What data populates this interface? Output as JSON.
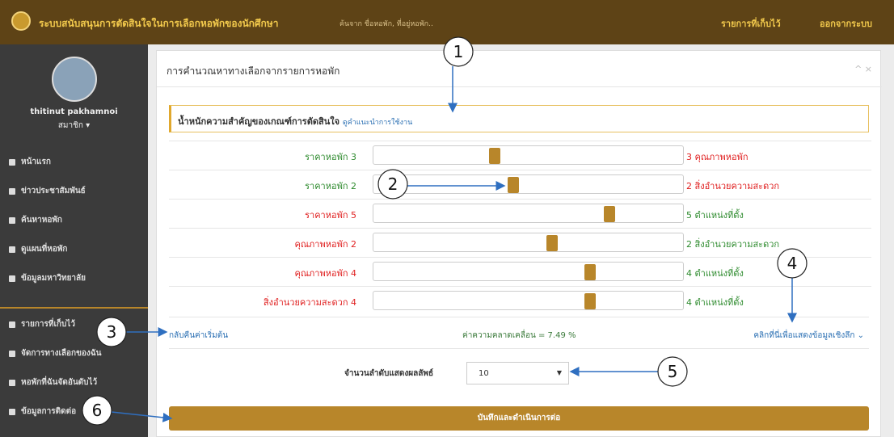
{
  "header": {
    "title": "ระบบสนับสนุนการตัดสินใจในการเลือกหอพักของนักศึกษา",
    "search_placeholder": "ค้นจาก ชื่อหอพัก, ที่อยู่หอพัก..",
    "saved": "รายการที่เก็บไว้",
    "logout": "ออกจากระบบ"
  },
  "sidebar": {
    "user_name": "thitinut pakhamnoi",
    "role": "สมาชิก",
    "menu": [
      "หน้าแรก",
      "ข่าวประชาสัมพันธ์",
      "ค้นหาหอพัก",
      "ดูแผนที่หอพัก",
      "ข้อมูลมหาวิทยาลัย",
      "รายการที่เก็บไว้",
      "จัดการทางเลือกของฉัน",
      "หอพักที่ฉันจัดอันดับไว้",
      "ข้อมูลการติดต่อ"
    ]
  },
  "panel": {
    "title": "การคำนวณหาทางเลือกจากรายการหอพัก",
    "weights_heading": "น้ำหนักความสำคัญของเกณฑ์การตัดสินใจ",
    "help_link": "ดูคำแนะนำการใช้งาน",
    "comparisons": [
      {
        "left": "ราคาหอพัก 3",
        "right": "3 คุณภาพหอพัก"
      },
      {
        "left": "ราคาหอพัก 2",
        "right": "2 สิ่งอำนวยความสะดวก"
      },
      {
        "left": "ราคาหอพัก 5",
        "right": "5 ตำแหน่งที่ตั้ง"
      },
      {
        "left": "คุณภาพหอพัก 2",
        "right": "2 สิ่งอำนวยความสะดวก"
      },
      {
        "left": "คุณภาพหอพัก 4",
        "right": "4 ตำแหน่งที่ตั้ง"
      },
      {
        "left": "สิ่งอำนวยความสะดวก 4",
        "right": "4 ตำแหน่งที่ตั้ง"
      }
    ],
    "reset": "กลับคืนค่าเริ่มต้น",
    "consistency": "ค่าความคลาดเคลื่อน = 7.49 %",
    "details": "คลิกที่นี่เพื่อแสดงข้อมูลเชิงลึก",
    "result_count_label": "จำนวนลำดับแสดงผลลัพธ์",
    "result_count": "10",
    "submit": "บันทึกและดำเนินการต่อ"
  },
  "callouts": [
    1,
    2,
    3,
    4,
    5,
    6
  ]
}
